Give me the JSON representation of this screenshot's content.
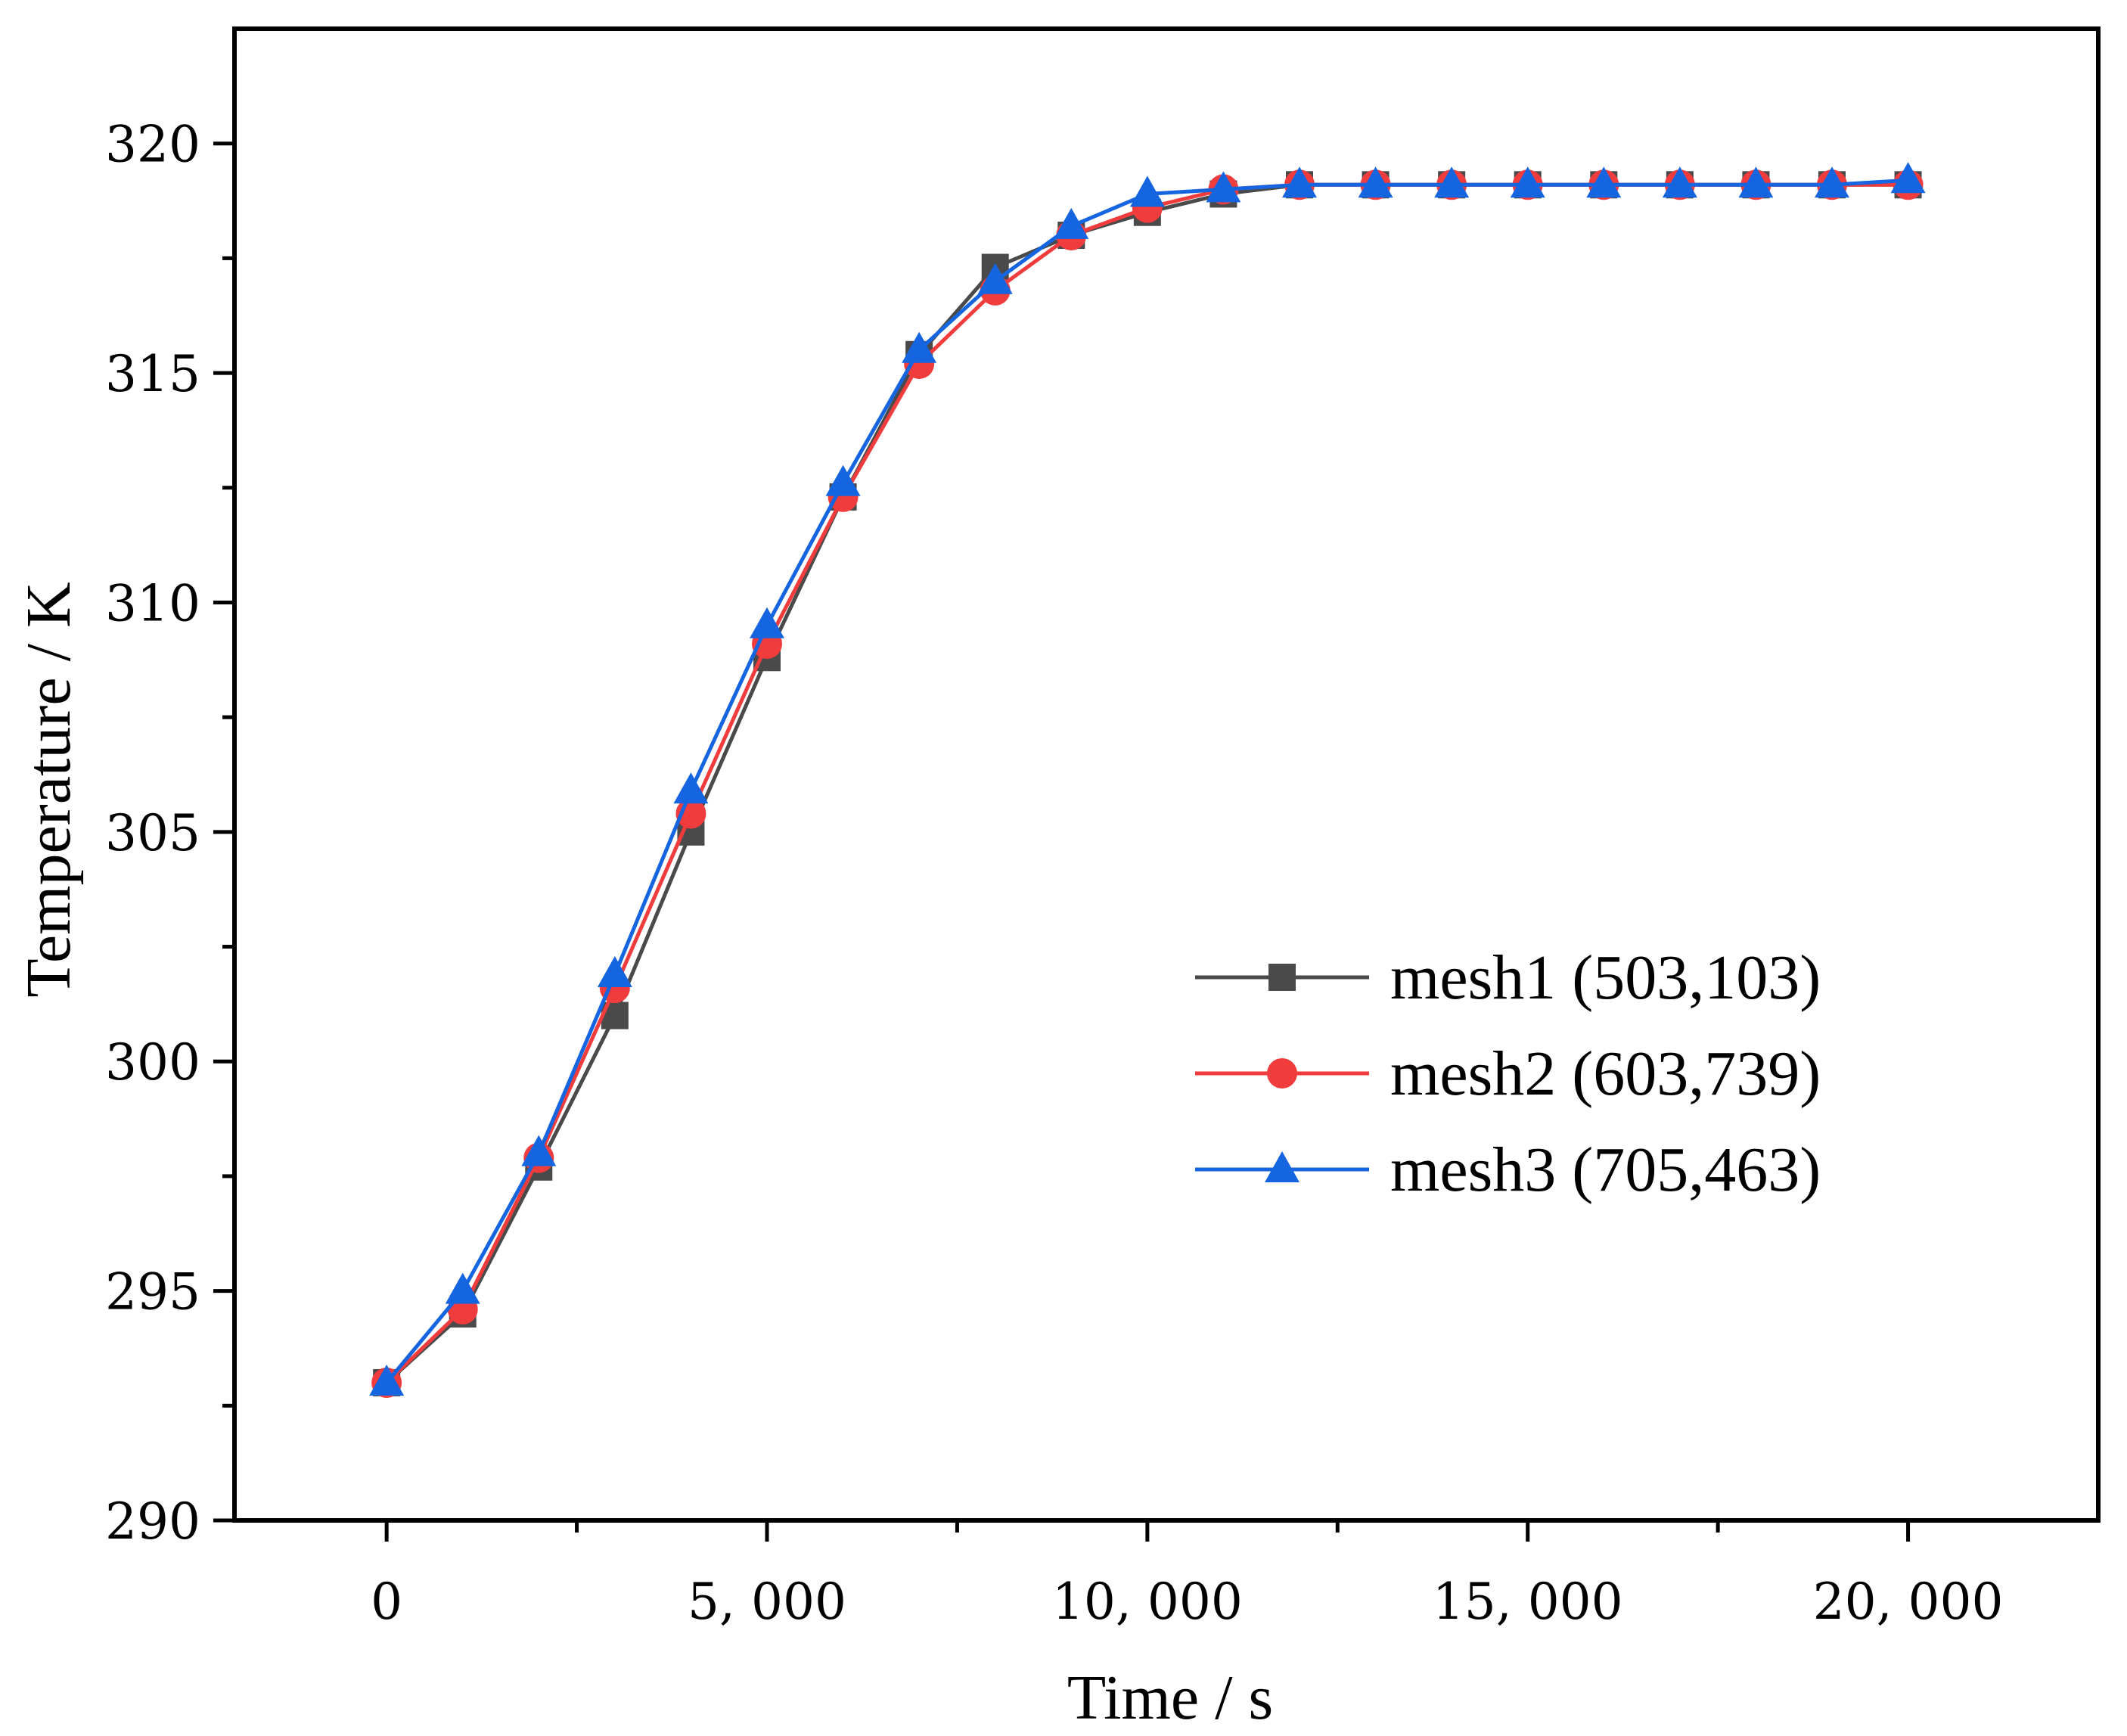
{
  "chart_data": {
    "type": "line",
    "title": "",
    "xlabel": "Time / s",
    "ylabel": "Temperature / K",
    "xlim": [
      -2000,
      22500
    ],
    "ylim": [
      290,
      322.5
    ],
    "x_ticks": [
      0,
      5000,
      10000,
      15000,
      20000
    ],
    "x_tick_labels": [
      "0",
      "5, 000",
      "10, 000",
      "15, 000",
      "20, 000"
    ],
    "x_minor_ticks": [
      2500,
      7500,
      12500,
      17500
    ],
    "y_ticks": [
      290,
      295,
      300,
      305,
      310,
      315,
      320
    ],
    "y_tick_labels": [
      "290",
      "295",
      "300",
      "305",
      "310",
      "315",
      "320"
    ],
    "y_minor_ticks": [
      292.5,
      297.5,
      302.5,
      307.5,
      312.5,
      317.5
    ],
    "grid": false,
    "legend_position": "center-right",
    "x": [
      0,
      1000,
      2000,
      3000,
      4000,
      5000,
      6000,
      7000,
      8000,
      9000,
      10000,
      11000,
      12000,
      13000,
      14000,
      15000,
      16000,
      17000,
      18000,
      19000,
      20000
    ],
    "series": [
      {
        "name": "mesh1 (503,103)",
        "color": "#4a4a4a",
        "marker": "square",
        "values": [
          293.0,
          294.5,
          297.7,
          301.0,
          305.0,
          308.8,
          312.3,
          315.4,
          317.3,
          318.0,
          318.5,
          318.9,
          319.1,
          319.1,
          319.1,
          319.1,
          319.1,
          319.1,
          319.1,
          319.1,
          319.1
        ]
      },
      {
        "name": "mesh2 (603,739)",
        "color": "#f03c3c",
        "marker": "circle",
        "values": [
          293.0,
          294.6,
          297.9,
          301.6,
          305.4,
          309.1,
          312.3,
          315.2,
          316.8,
          318.0,
          318.6,
          319.0,
          319.1,
          319.1,
          319.1,
          319.1,
          319.1,
          319.1,
          319.1,
          319.1,
          319.1
        ]
      },
      {
        "name": "mesh3 (705,463)",
        "color": "#1565e0",
        "marker": "triangle",
        "values": [
          293.0,
          295.0,
          298.0,
          301.9,
          305.9,
          309.5,
          312.6,
          315.5,
          317.0,
          318.2,
          318.9,
          319.0,
          319.1,
          319.1,
          319.1,
          319.1,
          319.1,
          319.1,
          319.1,
          319.1,
          319.2
        ]
      }
    ]
  }
}
